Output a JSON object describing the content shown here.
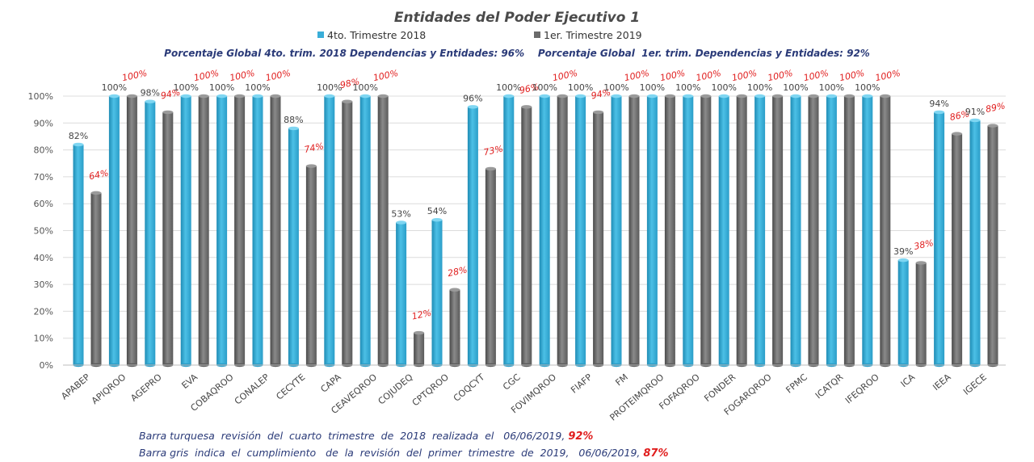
{
  "chart_data": {
    "type": "bar",
    "title": "Entidades del Poder Ejecutivo 1",
    "subtitle": "Porcentaje Global 4to. trim. 2018 Dependencias y Entidades: 96%    Porcentaje Global  1er. trim. Dependencias y Entidades: 92%",
    "ylim": [
      0,
      100
    ],
    "yticks": [
      "0%",
      "10%",
      "20%",
      "30%",
      "40%",
      "50%",
      "60%",
      "70%",
      "80%",
      "90%",
      "100%"
    ],
    "grid": true,
    "legend_position": "top-center",
    "categories": [
      "APABEP",
      "APIQROO",
      "AGEPRO",
      "EVA",
      "COBAQROO",
      "CONALEP",
      "CECYTE",
      "CAPA",
      "CEAVEQROO",
      "COJUDEQ",
      "CPTQROO",
      "COQCYT",
      "CGC",
      "FOVIMQROO",
      "FIAFP",
      "FM",
      "PROTEIMQROO",
      "FOFAQROO",
      "FONDER",
      "FOGARQROO",
      "FPMC",
      "ICATQR",
      "IFEQROO",
      "ICA",
      "IEEA",
      "IGECE"
    ],
    "series": [
      {
        "name": "4to. Trimestre 2018",
        "color": "#3aaed8",
        "values": [
          82,
          100,
          98,
          100,
          100,
          100,
          88,
          100,
          100,
          53,
          54,
          96,
          100,
          100,
          100,
          100,
          100,
          100,
          100,
          100,
          100,
          100,
          100,
          39,
          94,
          91
        ],
        "labels": [
          "82%",
          "100%",
          "98%",
          "100%",
          "100%",
          "100%",
          "88%",
          "100%",
          "100%",
          "53%",
          "54%",
          "96%",
          "100%",
          "100%",
          "100%",
          "100%",
          "100%",
          "100%",
          "100%",
          "100%",
          "100%",
          "100%",
          "100%",
          "39%",
          "94%",
          "91%"
        ]
      },
      {
        "name": "1er. Trimestre 2019",
        "color": "#6b6b6b",
        "values": [
          64,
          100,
          94,
          100,
          100,
          100,
          74,
          98,
          100,
          12,
          28,
          73,
          96,
          100,
          94,
          100,
          100,
          100,
          100,
          100,
          100,
          100,
          100,
          38,
          86,
          89
        ],
        "labels": [
          "64%",
          "100%",
          "94%",
          "100%",
          "100%",
          "100%",
          "74%",
          "98%",
          "100%",
          "12%",
          "28%",
          "73%",
          "96%",
          "100%",
          "94%",
          "100%",
          "100%",
          "100%",
          "100%",
          "100%",
          "100%",
          "100%",
          "100%",
          "38%",
          "86%",
          "89%"
        ]
      }
    ]
  },
  "notes": [
    {
      "text": "Barra turquesa  revisión  del  cuarto  trimestre  de  2018  realizada  el   06/06/2019,",
      "value": "92%"
    },
    {
      "text": "Barra gris  indica  el  cumplimiento   de  la  revisión  del  primer  trimestre  de  2019,   06/06/2019,",
      "value": "87%"
    }
  ]
}
